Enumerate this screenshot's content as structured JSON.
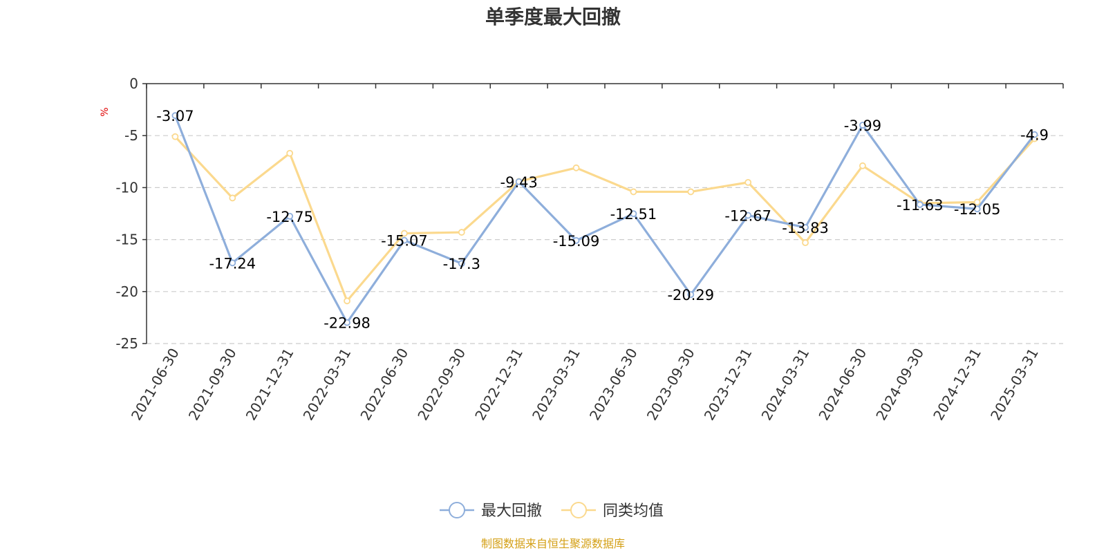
{
  "chart_data": {
    "type": "line",
    "title": "单季度最大回撤",
    "ylabel": "%",
    "ylim": [
      -25,
      0
    ],
    "yticks": [
      0,
      -5,
      -10,
      -15,
      -20,
      -25
    ],
    "grid": true,
    "legend_position": "bottom-center",
    "categories": [
      "2021-06-30",
      "2021-09-30",
      "2021-12-31",
      "2022-03-31",
      "2022-06-30",
      "2022-09-30",
      "2022-12-31",
      "2023-03-31",
      "2023-06-30",
      "2023-09-30",
      "2023-12-31",
      "2024-03-31",
      "2024-06-30",
      "2024-09-30",
      "2024-12-31",
      "2025-03-31"
    ],
    "series": [
      {
        "name": "最大回撤",
        "color": "#8eaedb",
        "values": [
          -3.07,
          -17.24,
          -12.75,
          -22.98,
          -15.07,
          -17.3,
          -9.43,
          -15.09,
          -12.51,
          -20.29,
          -12.67,
          -13.83,
          -3.99,
          -11.63,
          -12.05,
          -4.9
        ],
        "show_labels": true
      },
      {
        "name": "同类均值",
        "color": "#fbd98e",
        "values": [
          -5.1,
          -11.0,
          -6.7,
          -20.9,
          -14.4,
          -14.3,
          -9.4,
          -8.1,
          -10.4,
          -10.4,
          -9.5,
          -15.3,
          -7.9,
          -11.5,
          -11.4,
          -5.3
        ],
        "show_labels": false
      }
    ],
    "source": "制图数据来自恒生聚源数据库"
  }
}
